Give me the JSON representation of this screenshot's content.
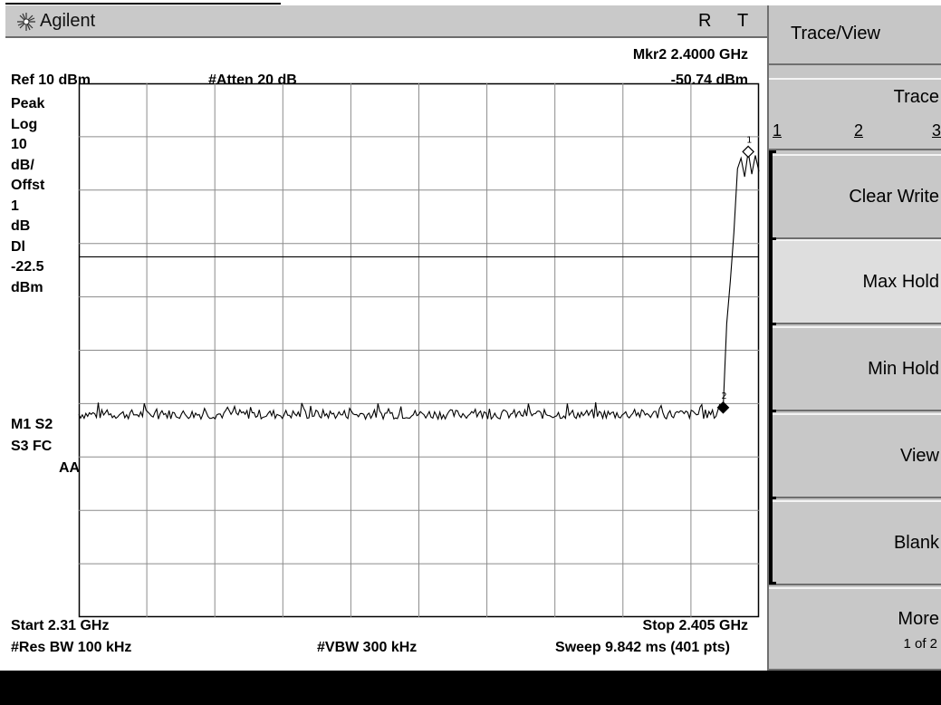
{
  "header": {
    "brand": "Agilent",
    "status_r": "R",
    "status_t": "T"
  },
  "readout": {
    "marker_freq": "Mkr2  2.4000 GHz",
    "marker_amp": "-50.74 dBm",
    "ref_level": "Ref 10 dBm",
    "atten": "#Atten 20 dB"
  },
  "left_annotations": [
    "Peak",
    "Log",
    "10",
    "dB/",
    "Offst",
    "1",
    "dB",
    "Dl",
    "-22.5",
    "dBm"
  ],
  "trace_status": {
    "line1": "M1  S2",
    "line2": "S3  FC",
    "line3": "AA"
  },
  "footer": {
    "start": "Start 2.31 GHz",
    "stop": "Stop 2.405 GHz",
    "res_bw": "#Res BW 100 kHz",
    "vbw": "#VBW 300 kHz",
    "sweep": "Sweep 9.842 ms (401 pts)"
  },
  "markers": [
    {
      "label": "1",
      "freq_ghz": 2.4035,
      "amp_dbm": -2.8
    },
    {
      "label": "2",
      "freq_ghz": 2.4,
      "amp_dbm": -50.74
    }
  ],
  "display_line_dbm": -22.5,
  "chart_data": {
    "type": "line",
    "x_start_ghz": 2.31,
    "x_stop_ghz": 2.405,
    "ref_level_dbm": 10,
    "scale_db_per_div": 10,
    "ylim": [
      -90,
      10
    ],
    "grid": true,
    "divisions": [
      10,
      10
    ],
    "noise_floor_dbm": -52,
    "series": [
      {
        "values": [
          {
            "x": 2.31,
            "y": -52.0
          },
          {
            "x": 2.399,
            "y": -52.0
          },
          {
            "x": 2.3995,
            "y": -50.2
          },
          {
            "x": 2.4,
            "y": -50.74
          },
          {
            "x": 2.4005,
            "y": -35.0
          },
          {
            "x": 2.401,
            "y": -27.0
          },
          {
            "x": 2.4015,
            "y": -18.0
          },
          {
            "x": 2.402,
            "y": -6.0
          },
          {
            "x": 2.4025,
            "y": -4.0
          },
          {
            "x": 2.403,
            "y": -7.5
          },
          {
            "x": 2.4035,
            "y": -2.8
          },
          {
            "x": 2.404,
            "y": -7.0
          },
          {
            "x": 2.4045,
            "y": -3.5
          },
          {
            "x": 2.405,
            "y": -6.5
          }
        ]
      }
    ]
  },
  "softkeys": {
    "menu_title": "Trace/View",
    "trace_label": "Trace",
    "trace_options": [
      "1",
      "2",
      "3"
    ],
    "clear_write": "Clear Write",
    "max_hold": "Max Hold",
    "min_hold": "Min Hold",
    "view": "View",
    "blank": "Blank",
    "more": "More",
    "more_page": "1 of 2"
  }
}
